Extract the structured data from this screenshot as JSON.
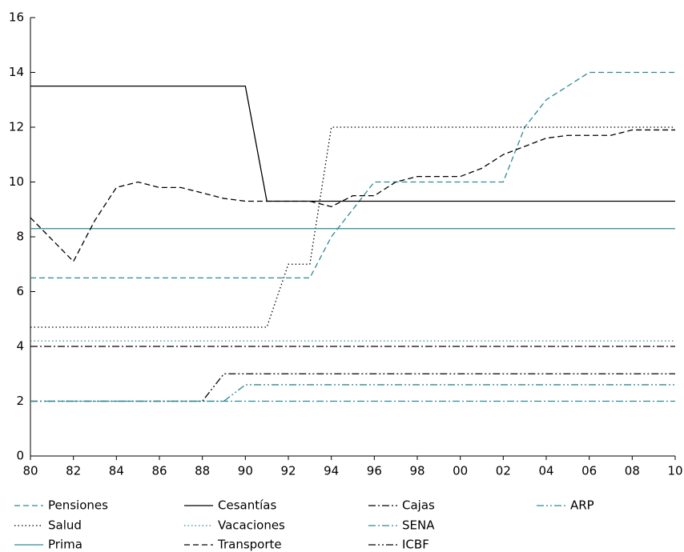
{
  "chart_data": {
    "type": "line",
    "categories": [
      "80",
      null,
      "82",
      null,
      "84",
      null,
      "86",
      null,
      "88",
      null,
      "90",
      null,
      "92",
      null,
      "94",
      null,
      "96",
      null,
      "98",
      null,
      "00",
      null,
      "02",
      null,
      "04",
      null,
      "06",
      null,
      "08",
      null,
      "10"
    ],
    "ylim": [
      0,
      16
    ],
    "yticks": [
      0,
      2,
      4,
      6,
      8,
      10,
      12,
      14,
      16
    ],
    "series": [
      {
        "name": "Pensiones",
        "color": "#2a8a94",
        "dash": "dashed",
        "values": [
          6.5,
          6.5,
          6.5,
          6.5,
          6.5,
          6.5,
          6.5,
          6.5,
          6.5,
          6.5,
          6.5,
          6.5,
          6.5,
          6.5,
          8,
          9,
          10,
          10,
          10,
          10,
          10,
          10,
          10,
          12,
          13,
          13.5,
          14,
          14,
          14,
          14,
          14
        ]
      },
      {
        "name": "Salud",
        "color": "#000000",
        "dash": "dotted",
        "values": [
          4.7,
          4.7,
          4.7,
          4.7,
          4.7,
          4.7,
          4.7,
          4.7,
          4.7,
          4.7,
          4.7,
          4.7,
          7,
          7,
          12,
          12,
          12,
          12,
          12,
          12,
          12,
          12,
          12,
          12,
          12,
          12,
          12,
          12,
          12,
          12,
          12
        ]
      },
      {
        "name": "Prima",
        "color": "#2a8a94",
        "dash": "solid",
        "values": [
          8.3,
          8.3,
          8.3,
          8.3,
          8.3,
          8.3,
          8.3,
          8.3,
          8.3,
          8.3,
          8.3,
          8.3,
          8.3,
          8.3,
          8.3,
          8.3,
          8.3,
          8.3,
          8.3,
          8.3,
          8.3,
          8.3,
          8.3,
          8.3,
          8.3,
          8.3,
          8.3,
          8.3,
          8.3,
          8.3,
          8.3
        ]
      },
      {
        "name": "Cesantías",
        "color": "#000000",
        "dash": "solid",
        "values": [
          13.5,
          13.5,
          13.5,
          13.5,
          13.5,
          13.5,
          13.5,
          13.5,
          13.5,
          13.5,
          13.5,
          9.3,
          9.3,
          9.3,
          9.3,
          9.3,
          9.3,
          9.3,
          9.3,
          9.3,
          9.3,
          9.3,
          9.3,
          9.3,
          9.3,
          9.3,
          9.3,
          9.3,
          9.3,
          9.3,
          9.3
        ]
      },
      {
        "name": "Vacaciones",
        "color": "#2a8a94",
        "dash": "dotted",
        "values": [
          4.2,
          4.2,
          4.2,
          4.2,
          4.2,
          4.2,
          4.2,
          4.2,
          4.2,
          4.2,
          4.2,
          4.2,
          4.2,
          4.2,
          4.2,
          4.2,
          4.2,
          4.2,
          4.2,
          4.2,
          4.2,
          4.2,
          4.2,
          4.2,
          4.2,
          4.2,
          4.2,
          4.2,
          4.2,
          4.2,
          4.2
        ]
      },
      {
        "name": "Transporte",
        "color": "#000000",
        "dash": "dashed",
        "values": [
          8.7,
          7.9,
          7.1,
          8.6,
          9.8,
          10,
          9.8,
          9.8,
          9.6,
          9.4,
          9.3,
          9.3,
          9.3,
          9.3,
          9.1,
          9.5,
          9.5,
          10,
          10.2,
          10.2,
          10.2,
          10.5,
          11,
          11.3,
          11.6,
          11.7,
          11.7,
          11.7,
          11.9,
          11.9,
          11.9
        ]
      },
      {
        "name": "Cajas",
        "color": "#000000",
        "dash": "dashdot",
        "values": [
          4,
          4,
          4,
          4,
          4,
          4,
          4,
          4,
          4,
          4,
          4,
          4,
          4,
          4,
          4,
          4,
          4,
          4,
          4,
          4,
          4,
          4,
          4,
          4,
          4,
          4,
          4,
          4,
          4,
          4,
          4
        ]
      },
      {
        "name": "SENA",
        "color": "#2a8a94",
        "dash": "dashdot",
        "values": [
          2,
          2,
          2,
          2,
          2,
          2,
          2,
          2,
          2,
          2,
          2,
          2,
          2,
          2,
          2,
          2,
          2,
          2,
          2,
          2,
          2,
          2,
          2,
          2,
          2,
          2,
          2,
          2,
          2,
          2,
          2
        ]
      },
      {
        "name": "ICBF",
        "color": "#000000",
        "dash": "dashdotdot",
        "values": [
          2,
          2,
          2,
          2,
          2,
          2,
          2,
          2,
          2,
          3,
          3,
          3,
          3,
          3,
          3,
          3,
          3,
          3,
          3,
          3,
          3,
          3,
          3,
          3,
          3,
          3,
          3,
          3,
          3,
          3,
          3
        ]
      },
      {
        "name": "ARP",
        "color": "#2a8a94",
        "dash": "dashdotdot",
        "values": [
          2,
          2,
          2,
          2,
          2,
          2,
          2,
          2,
          2,
          2,
          2.6,
          2.6,
          2.6,
          2.6,
          2.6,
          2.6,
          2.6,
          2.6,
          2.6,
          2.6,
          2.6,
          2.6,
          2.6,
          2.6,
          2.6,
          2.6,
          2.6,
          2.6,
          2.6,
          2.6,
          2.6
        ]
      }
    ]
  }
}
